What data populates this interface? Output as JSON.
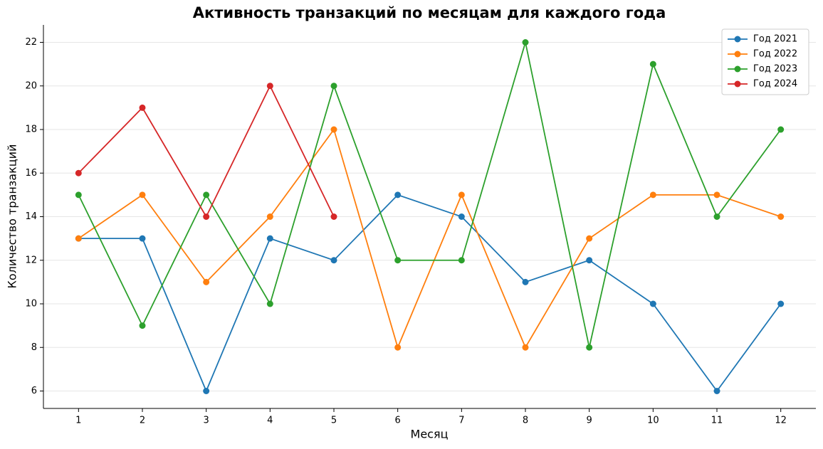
{
  "chart_data": {
    "type": "line",
    "title": "Активность транзакций по месяцам для каждого года",
    "xlabel": "Месяц",
    "ylabel": "Количество транзакций",
    "x": [
      1,
      2,
      3,
      4,
      5,
      6,
      7,
      8,
      9,
      10,
      11,
      12
    ],
    "series": [
      {
        "name": "Год 2021",
        "color": "#1f77b4",
        "values": [
          13,
          13,
          6,
          13,
          12,
          15,
          14,
          11,
          12,
          10,
          6,
          10
        ]
      },
      {
        "name": "Год 2022",
        "color": "#ff7f0e",
        "values": [
          13,
          15,
          11,
          14,
          18,
          8,
          15,
          8,
          13,
          15,
          15,
          14
        ]
      },
      {
        "name": "Год 2023",
        "color": "#2ca02c",
        "values": [
          15,
          9,
          15,
          10,
          20,
          12,
          12,
          22,
          8,
          21,
          14,
          18
        ]
      },
      {
        "name": "Год 2024",
        "color": "#d62728",
        "values": [
          16,
          19,
          14,
          20,
          14,
          null,
          null,
          null,
          null,
          null,
          null,
          null
        ]
      }
    ],
    "xlim": [
      0.45,
      12.55
    ],
    "ylim": [
      5.2,
      22.8
    ],
    "xticks": [
      1,
      2,
      3,
      4,
      5,
      6,
      7,
      8,
      9,
      10,
      11,
      12
    ],
    "yticks": [
      6,
      8,
      10,
      12,
      14,
      16,
      18,
      20,
      22
    ],
    "grid": true,
    "legend": "upper right"
  }
}
